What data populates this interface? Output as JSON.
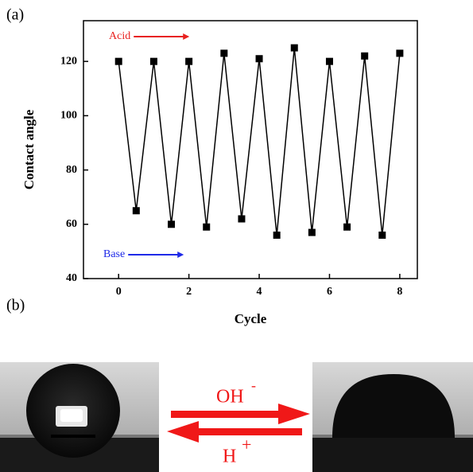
{
  "panel_labels": [
    "(a)",
    "(b)"
  ],
  "chart_data": {
    "type": "line",
    "x_label": "Cycle",
    "y_label": "Contact angle",
    "x": [
      0,
      0.5,
      1,
      1.5,
      2,
      2.5,
      3,
      3.5,
      4,
      4.5,
      5,
      5.5,
      6,
      6.5,
      7,
      7.5,
      8
    ],
    "series": [
      {
        "color": "#000000",
        "values": [
          120,
          65,
          120,
          60,
          120,
          59,
          123,
          62,
          121,
          56,
          125,
          57,
          120,
          59,
          122,
          56,
          123
        ]
      }
    ],
    "xlim": [
      -1,
      8.5
    ],
    "xticks": [
      0,
      2,
      4,
      6,
      8
    ],
    "ylim": [
      40,
      135
    ],
    "yticks": [
      40,
      60,
      80,
      100,
      120
    ],
    "annotations": [
      {
        "text": "Acid",
        "color": "#e8211f"
      },
      {
        "text": "Base",
        "color": "#1f2ae8"
      }
    ]
  },
  "reaction": {
    "forward": "OH",
    "forward_sup": "-",
    "backward": "H",
    "backward_sup": "+",
    "color": "#f01818"
  }
}
